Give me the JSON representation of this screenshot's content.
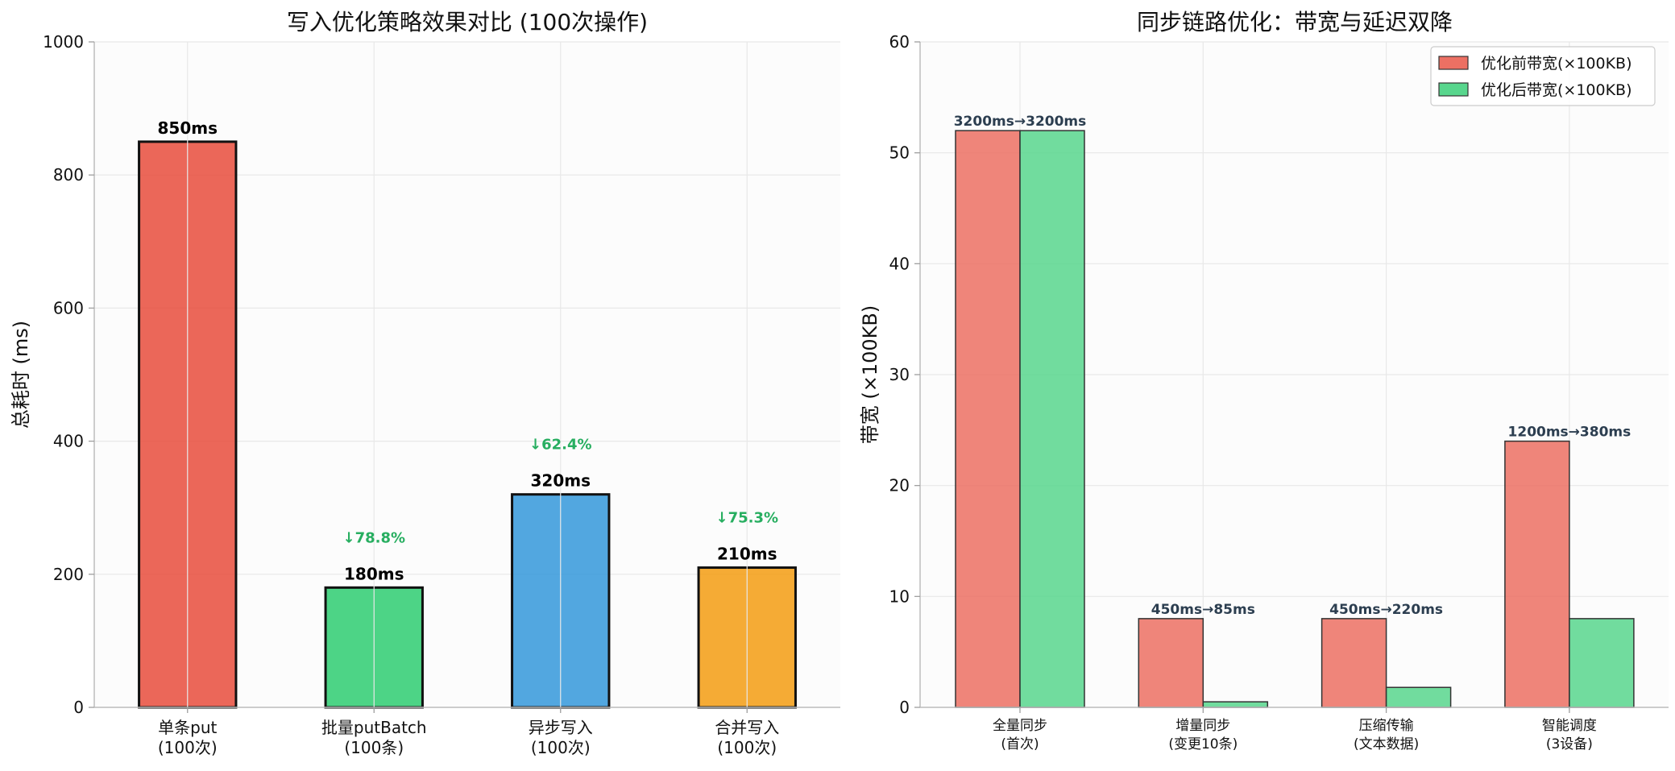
{
  "chart_data": [
    {
      "type": "bar",
      "title": "写入优化策略效果对比 (100次操作)",
      "ylabel": "总耗时 (ms)",
      "xlabel": "",
      "ylim": [
        0,
        1000
      ],
      "yticks": [
        0,
        200,
        400,
        600,
        800,
        1000
      ],
      "categories": [
        [
          "单条put",
          "(100次)"
        ],
        [
          "批量putBatch",
          "(100条)"
        ],
        [
          "异步写入",
          "(100次)"
        ],
        [
          "合并写入",
          "(100次)"
        ]
      ],
      "values": [
        850,
        180,
        320,
        210
      ],
      "value_labels": [
        "850ms",
        "180ms",
        "320ms",
        "210ms"
      ],
      "reduction_labels": [
        "",
        "↓78.8%",
        "↓62.4%",
        "↓75.3%"
      ],
      "colors": [
        "#e74c3c",
        "#2ecc71",
        "#3498db",
        "#f39c12"
      ],
      "grid": true,
      "legend": "none"
    },
    {
      "type": "bar",
      "title": "同步链路优化：带宽与延迟双降",
      "ylabel": "带宽 (×100KB)",
      "xlabel": "",
      "ylim": [
        0,
        60
      ],
      "yticks": [
        0,
        10,
        20,
        30,
        40,
        50,
        60
      ],
      "categories": [
        [
          "全量同步",
          "(首次)"
        ],
        [
          "增量同步",
          "(变更10条)"
        ],
        [
          "压缩传输",
          "(文本数据)"
        ],
        [
          "智能调度",
          "(3设备)"
        ]
      ],
      "series": [
        {
          "name": "优化前带宽(×100KB)",
          "values": [
            52,
            8,
            8,
            24
          ],
          "color": "#ec7063"
        },
        {
          "name": "优化后带宽(×100KB)",
          "values": [
            52,
            0.5,
            1.8,
            8
          ],
          "color": "#58d68d"
        }
      ],
      "latency_labels": [
        "3200ms→3200ms",
        "450ms→85ms",
        "450ms→220ms",
        "1200ms→380ms"
      ],
      "grid": true,
      "legend": "top-right"
    }
  ]
}
